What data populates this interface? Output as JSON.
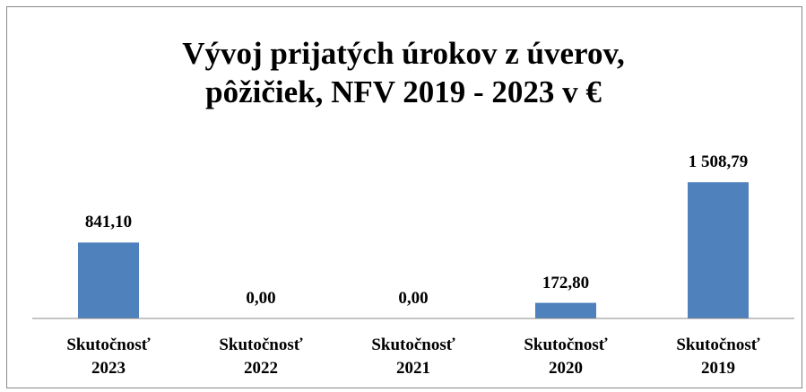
{
  "chart_data": {
    "type": "bar",
    "title": "Vývoj prijatých úrokov z úverov, pôžičiek, NFV 2019 - 2023 v €",
    "categories": [
      "Skutočnosť 2023",
      "Skutočnosť 2022",
      "Skutočnosť 2021",
      "Skutočnosť 2020",
      "Skutočnosť 2019"
    ],
    "values": [
      841.1,
      0,
      0,
      172.8,
      1508.79
    ],
    "value_labels": [
      "841,10",
      "0,00",
      "0,00",
      "172,80",
      "1 508,79"
    ],
    "color": "#4f81bd",
    "ylim": [
      0,
      1600
    ]
  }
}
